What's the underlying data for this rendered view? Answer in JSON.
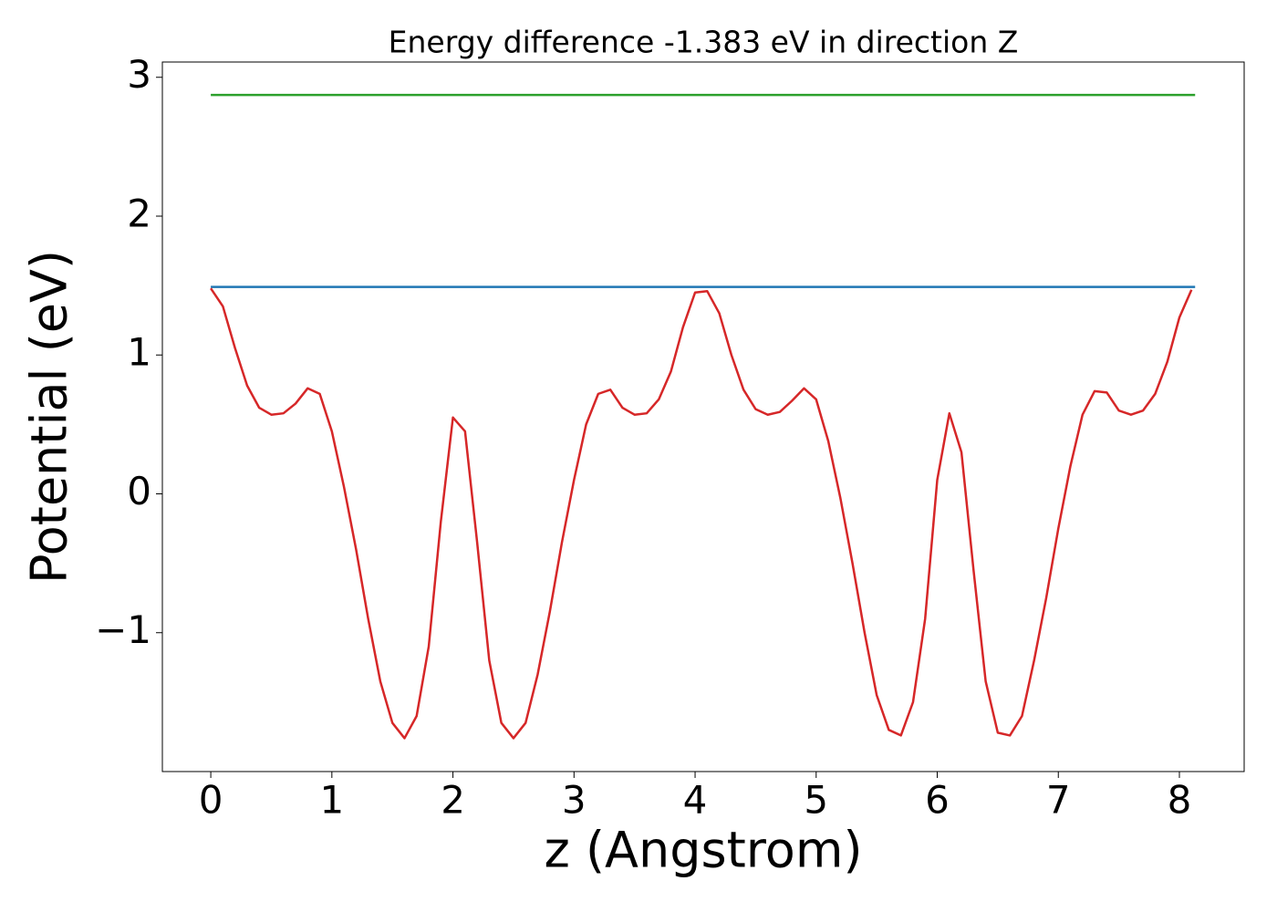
{
  "chart_data": {
    "type": "line",
    "title": "Energy difference -1.383 eV in direction Z",
    "xlabel": "z (Angstrom)",
    "ylabel": "Potential (eV)",
    "xlim": [
      -0.4,
      8.535
    ],
    "xticks": [
      0,
      1,
      2,
      3,
      4,
      5,
      6,
      7,
      8
    ],
    "ylim": [
      -2.0,
      3.11
    ],
    "yticks": [
      {
        "value": -1,
        "label": "−1"
      },
      0,
      1,
      2,
      3
    ],
    "series": [
      {
        "color": "#2ca02c",
        "x": [
          0,
          8.13
        ],
        "values": [
          2.873,
          2.873
        ]
      },
      {
        "color": "#1f77b4",
        "x": [
          0,
          8.13
        ],
        "values": [
          1.49,
          1.49
        ]
      },
      {
        "color": "#d62728",
        "x": [
          0,
          0.1,
          0.2,
          0.3,
          0.4,
          0.5,
          0.6,
          0.7,
          0.8,
          0.9,
          1.0,
          1.1,
          1.2,
          1.3,
          1.4,
          1.5,
          1.6,
          1.7,
          1.8,
          1.9,
          2.0,
          2.1,
          2.2,
          2.3,
          2.4,
          2.5,
          2.6,
          2.7,
          2.8,
          2.9,
          3.0,
          3.1,
          3.2,
          3.3,
          3.4,
          3.5,
          3.6,
          3.7,
          3.8,
          3.9,
          4.0,
          4.1,
          4.2,
          4.3,
          4.4,
          4.5,
          4.6,
          4.7,
          4.8,
          4.9,
          5.0,
          5.1,
          5.2,
          5.3,
          5.4,
          5.5,
          5.6,
          5.7,
          5.8,
          5.9,
          6.0,
          6.1,
          6.2,
          6.3,
          6.4,
          6.5,
          6.6,
          6.7,
          6.8,
          6.9,
          7.0,
          7.1,
          7.2,
          7.3,
          7.4,
          7.5,
          7.6,
          7.7,
          7.8,
          7.9,
          8.0,
          8.1
        ],
        "values": [
          1.48,
          1.35,
          1.05,
          0.78,
          0.62,
          0.57,
          0.58,
          0.65,
          0.76,
          0.72,
          0.45,
          0.05,
          -0.4,
          -0.9,
          -1.35,
          -1.65,
          -1.76,
          -1.6,
          -1.1,
          -0.2,
          0.55,
          0.45,
          -0.35,
          -1.2,
          -1.65,
          -1.76,
          -1.65,
          -1.3,
          -0.85,
          -0.35,
          0.1,
          0.5,
          0.72,
          0.75,
          0.62,
          0.57,
          0.58,
          0.68,
          0.88,
          1.2,
          1.45,
          1.46,
          1.3,
          1.0,
          0.75,
          0.61,
          0.57,
          0.59,
          0.67,
          0.76,
          0.68,
          0.38,
          -0.03,
          -0.5,
          -1.0,
          -1.45,
          -1.7,
          -1.74,
          -1.5,
          -0.9,
          0.1,
          0.58,
          0.3,
          -0.55,
          -1.35,
          -1.72,
          -1.74,
          -1.6,
          -1.2,
          -0.75,
          -0.25,
          0.2,
          0.57,
          0.74,
          0.73,
          0.6,
          0.57,
          0.6,
          0.72,
          0.95,
          1.27,
          1.47
        ]
      }
    ]
  }
}
